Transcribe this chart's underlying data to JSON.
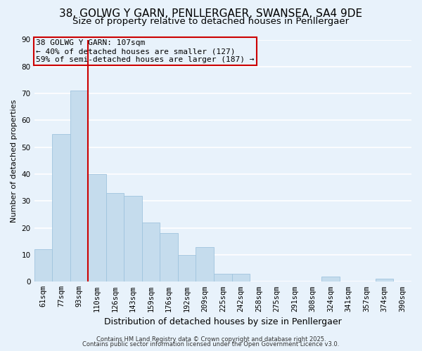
{
  "title": "38, GOLWG Y GARN, PENLLERGAER, SWANSEA, SA4 9DE",
  "subtitle": "Size of property relative to detached houses in Penllergaer",
  "xlabel": "Distribution of detached houses by size in Penllergaer",
  "ylabel": "Number of detached properties",
  "categories": [
    "61sqm",
    "77sqm",
    "93sqm",
    "110sqm",
    "126sqm",
    "143sqm",
    "159sqm",
    "176sqm",
    "192sqm",
    "209sqm",
    "225sqm",
    "242sqm",
    "258sqm",
    "275sqm",
    "291sqm",
    "308sqm",
    "324sqm",
    "341sqm",
    "357sqm",
    "374sqm",
    "390sqm"
  ],
  "values": [
    12,
    55,
    71,
    40,
    33,
    32,
    22,
    18,
    10,
    13,
    3,
    3,
    0,
    0,
    0,
    0,
    2,
    0,
    0,
    1,
    0
  ],
  "bar_color": "#c5dced",
  "bar_edge_color": "#a0c4de",
  "vline_color": "#cc0000",
  "ylim": [
    0,
    90
  ],
  "yticks": [
    0,
    10,
    20,
    30,
    40,
    50,
    60,
    70,
    80,
    90
  ],
  "annotation_text": "38 GOLWG Y GARN: 107sqm\n← 40% of detached houses are smaller (127)\n59% of semi-detached houses are larger (187) →",
  "annotation_box_edge": "#cc0000",
  "footer1": "Contains HM Land Registry data © Crown copyright and database right 2025.",
  "footer2": "Contains public sector information licensed under the Open Government Licence v3.0.",
  "background_color": "#e8f2fb",
  "grid_color": "#ffffff",
  "title_fontsize": 11,
  "subtitle_fontsize": 9.5,
  "xlabel_fontsize": 9,
  "ylabel_fontsize": 8,
  "tick_fontsize": 7.5,
  "annotation_fontsize": 8,
  "footer_fontsize": 6,
  "vline_bar_index": 2
}
